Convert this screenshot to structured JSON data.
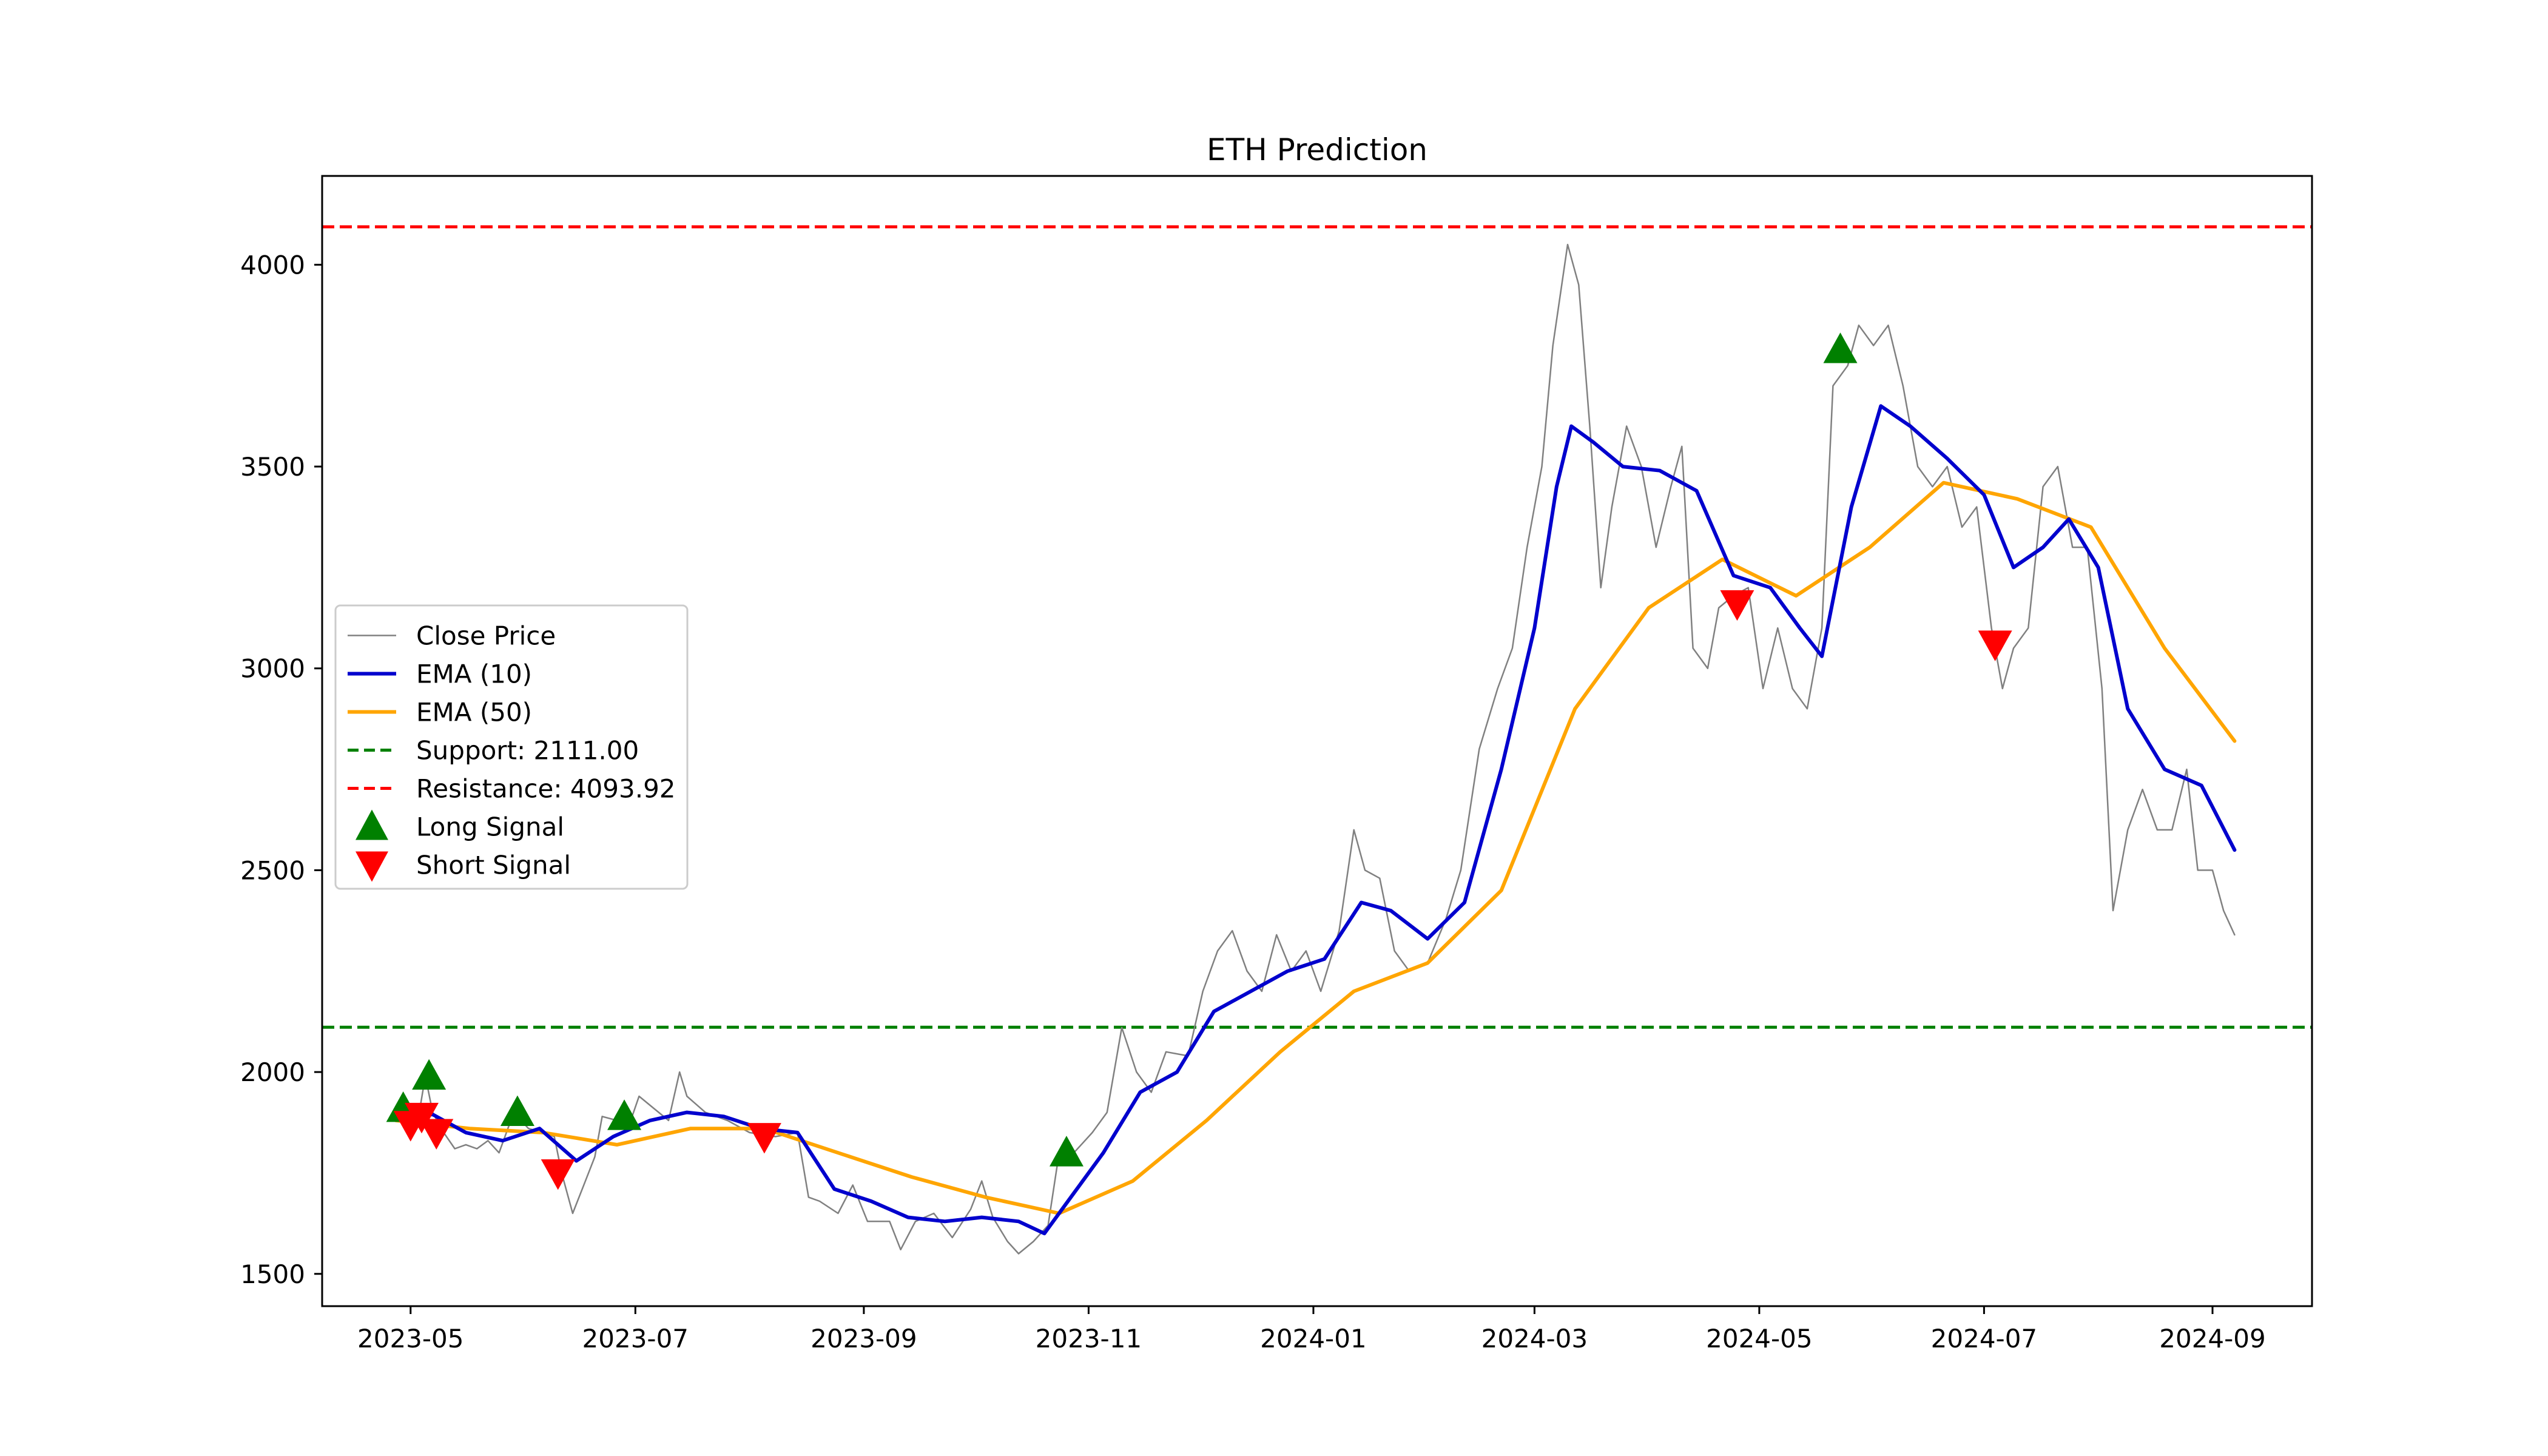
{
  "chart_data": {
    "type": "line",
    "title": "ETH Prediction",
    "xlabel": "",
    "ylabel": "",
    "xlim": [
      "2023-04-07",
      "2024-09-28"
    ],
    "ylim": [
      1420,
      4220
    ],
    "x_ticks": [
      "2023-05-01",
      "2023-07-01",
      "2023-09-01",
      "2023-11-01",
      "2024-01-01",
      "2024-03-01",
      "2024-05-01",
      "2024-07-01",
      "2024-09-01"
    ],
    "x_tick_labels": [
      "2023-05",
      "2023-07",
      "2023-09",
      "2023-11",
      "2024-01",
      "2024-03",
      "2024-05",
      "2024-07",
      "2024-09"
    ],
    "y_ticks": [
      1500,
      2000,
      2500,
      3000,
      3500,
      4000
    ],
    "y_tick_labels": [
      "1500",
      "2000",
      "2500",
      "3000",
      "3500",
      "4000"
    ],
    "grid": false,
    "legend_position": "center-left",
    "legend": [
      {
        "label": "Close Price",
        "style": "thin-line",
        "color": "#808080"
      },
      {
        "label": "EMA (10)",
        "style": "line",
        "color": "#0000cd"
      },
      {
        "label": "EMA (50)",
        "style": "line",
        "color": "#ffa500"
      },
      {
        "label": "Support: 2111.00",
        "style": "dashed",
        "color": "#008000"
      },
      {
        "label": "Resistance: 4093.92",
        "style": "dashed",
        "color": "#ff0000"
      },
      {
        "label": "Long Signal",
        "style": "triangle-up",
        "color": "#008000"
      },
      {
        "label": "Short Signal",
        "style": "triangle-down",
        "color": "#ff0000"
      }
    ],
    "support": 2111.0,
    "resistance": 4093.92,
    "colors": {
      "close": "#808080",
      "ema10": "#0000cd",
      "ema50": "#ffa500",
      "support": "#008000",
      "resistance": "#ff0000",
      "long": "#008000",
      "short": "#ff0000"
    },
    "series": [
      {
        "key": "close",
        "values": [
          [
            "2023-04-27",
            1890
          ],
          [
            "2023-04-30",
            1870
          ],
          [
            "2023-05-03",
            1880
          ],
          [
            "2023-05-05",
            1990
          ],
          [
            "2023-05-07",
            1900
          ],
          [
            "2023-05-10",
            1850
          ],
          [
            "2023-05-13",
            1810
          ],
          [
            "2023-05-16",
            1820
          ],
          [
            "2023-05-19",
            1810
          ],
          [
            "2023-05-22",
            1830
          ],
          [
            "2023-05-25",
            1800
          ],
          [
            "2023-05-29",
            1900
          ],
          [
            "2023-06-02",
            1860
          ],
          [
            "2023-06-06",
            1850
          ],
          [
            "2023-06-09",
            1840
          ],
          [
            "2023-06-11",
            1750
          ],
          [
            "2023-06-14",
            1650
          ],
          [
            "2023-06-17",
            1720
          ],
          [
            "2023-06-20",
            1790
          ],
          [
            "2023-06-22",
            1890
          ],
          [
            "2023-06-26",
            1880
          ],
          [
            "2023-06-29",
            1860
          ],
          [
            "2023-07-02",
            1940
          ],
          [
            "2023-07-06",
            1910
          ],
          [
            "2023-07-10",
            1880
          ],
          [
            "2023-07-13",
            2000
          ],
          [
            "2023-07-15",
            1940
          ],
          [
            "2023-07-20",
            1900
          ],
          [
            "2023-07-26",
            1880
          ],
          [
            "2023-08-01",
            1850
          ],
          [
            "2023-08-08",
            1840
          ],
          [
            "2023-08-14",
            1850
          ],
          [
            "2023-08-17",
            1690
          ],
          [
            "2023-08-20",
            1680
          ],
          [
            "2023-08-25",
            1650
          ],
          [
            "2023-08-29",
            1720
          ],
          [
            "2023-09-02",
            1630
          ],
          [
            "2023-09-08",
            1630
          ],
          [
            "2023-09-11",
            1560
          ],
          [
            "2023-09-15",
            1630
          ],
          [
            "2023-09-20",
            1650
          ],
          [
            "2023-09-25",
            1590
          ],
          [
            "2023-09-30",
            1660
          ],
          [
            "2023-10-03",
            1730
          ],
          [
            "2023-10-06",
            1640
          ],
          [
            "2023-10-10",
            1580
          ],
          [
            "2023-10-13",
            1550
          ],
          [
            "2023-10-17",
            1580
          ],
          [
            "2023-10-21",
            1620
          ],
          [
            "2023-10-24",
            1800
          ],
          [
            "2023-10-28",
            1800
          ],
          [
            "2023-11-02",
            1850
          ],
          [
            "2023-11-06",
            1900
          ],
          [
            "2023-11-10",
            2110
          ],
          [
            "2023-11-14",
            2000
          ],
          [
            "2023-11-18",
            1950
          ],
          [
            "2023-11-22",
            2050
          ],
          [
            "2023-11-28",
            2040
          ],
          [
            "2023-12-02",
            2200
          ],
          [
            "2023-12-06",
            2300
          ],
          [
            "2023-12-10",
            2350
          ],
          [
            "2023-12-14",
            2250
          ],
          [
            "2023-12-18",
            2200
          ],
          [
            "2023-12-22",
            2340
          ],
          [
            "2023-12-26",
            2250
          ],
          [
            "2023-12-30",
            2300
          ],
          [
            "2024-01-03",
            2200
          ],
          [
            "2024-01-08",
            2350
          ],
          [
            "2024-01-12",
            2600
          ],
          [
            "2024-01-15",
            2500
          ],
          [
            "2024-01-19",
            2480
          ],
          [
            "2024-01-23",
            2300
          ],
          [
            "2024-01-27",
            2250
          ],
          [
            "2024-02-01",
            2270
          ],
          [
            "2024-02-06",
            2380
          ],
          [
            "2024-02-10",
            2500
          ],
          [
            "2024-02-15",
            2800
          ],
          [
            "2024-02-20",
            2950
          ],
          [
            "2024-02-24",
            3050
          ],
          [
            "2024-02-28",
            3300
          ],
          [
            "2024-03-03",
            3500
          ],
          [
            "2024-03-06",
            3800
          ],
          [
            "2024-03-10",
            4050
          ],
          [
            "2024-03-13",
            3950
          ],
          [
            "2024-03-16",
            3600
          ],
          [
            "2024-03-19",
            3200
          ],
          [
            "2024-03-22",
            3400
          ],
          [
            "2024-03-26",
            3600
          ],
          [
            "2024-03-30",
            3500
          ],
          [
            "2024-04-03",
            3300
          ],
          [
            "2024-04-07",
            3450
          ],
          [
            "2024-04-10",
            3550
          ],
          [
            "2024-04-13",
            3050
          ],
          [
            "2024-04-17",
            3000
          ],
          [
            "2024-04-20",
            3150
          ],
          [
            "2024-04-24",
            3180
          ],
          [
            "2024-04-28",
            3200
          ],
          [
            "2024-05-02",
            2950
          ],
          [
            "2024-05-06",
            3100
          ],
          [
            "2024-05-10",
            2950
          ],
          [
            "2024-05-14",
            2900
          ],
          [
            "2024-05-18",
            3100
          ],
          [
            "2024-05-21",
            3700
          ],
          [
            "2024-05-25",
            3750
          ],
          [
            "2024-05-28",
            3850
          ],
          [
            "2024-06-01",
            3800
          ],
          [
            "2024-06-05",
            3850
          ],
          [
            "2024-06-09",
            3700
          ],
          [
            "2024-06-13",
            3500
          ],
          [
            "2024-06-17",
            3450
          ],
          [
            "2024-06-21",
            3500
          ],
          [
            "2024-06-25",
            3350
          ],
          [
            "2024-06-29",
            3400
          ],
          [
            "2024-07-03",
            3100
          ],
          [
            "2024-07-06",
            2950
          ],
          [
            "2024-07-09",
            3050
          ],
          [
            "2024-07-13",
            3100
          ],
          [
            "2024-07-17",
            3450
          ],
          [
            "2024-07-21",
            3500
          ],
          [
            "2024-07-25",
            3300
          ],
          [
            "2024-07-29",
            3300
          ],
          [
            "2024-08-02",
            2950
          ],
          [
            "2024-08-05",
            2400
          ],
          [
            "2024-08-09",
            2600
          ],
          [
            "2024-08-13",
            2700
          ],
          [
            "2024-08-17",
            2600
          ],
          [
            "2024-08-21",
            2600
          ],
          [
            "2024-08-25",
            2750
          ],
          [
            "2024-08-28",
            2500
          ],
          [
            "2024-09-01",
            2500
          ],
          [
            "2024-09-04",
            2400
          ],
          [
            "2024-09-07",
            2340
          ]
        ]
      },
      {
        "key": "ema10",
        "values": [
          [
            "2023-04-27",
            1890
          ],
          [
            "2023-05-07",
            1895
          ],
          [
            "2023-05-16",
            1850
          ],
          [
            "2023-05-26",
            1830
          ],
          [
            "2023-06-05",
            1860
          ],
          [
            "2023-06-15",
            1780
          ],
          [
            "2023-06-25",
            1840
          ],
          [
            "2023-07-05",
            1880
          ],
          [
            "2023-07-15",
            1900
          ],
          [
            "2023-07-25",
            1890
          ],
          [
            "2023-08-04",
            1860
          ],
          [
            "2023-08-14",
            1850
          ],
          [
            "2023-08-24",
            1710
          ],
          [
            "2023-09-03",
            1680
          ],
          [
            "2023-09-13",
            1640
          ],
          [
            "2023-09-23",
            1630
          ],
          [
            "2023-10-03",
            1640
          ],
          [
            "2023-10-13",
            1630
          ],
          [
            "2023-10-20",
            1600
          ],
          [
            "2023-10-28",
            1700
          ],
          [
            "2023-11-05",
            1800
          ],
          [
            "2023-11-15",
            1950
          ],
          [
            "2023-11-25",
            2000
          ],
          [
            "2023-12-05",
            2150
          ],
          [
            "2023-12-15",
            2200
          ],
          [
            "2023-12-25",
            2250
          ],
          [
            "2024-01-04",
            2280
          ],
          [
            "2024-01-14",
            2420
          ],
          [
            "2024-01-22",
            2400
          ],
          [
            "2024-02-01",
            2330
          ],
          [
            "2024-02-11",
            2420
          ],
          [
            "2024-02-21",
            2750
          ],
          [
            "2024-03-01",
            3100
          ],
          [
            "2024-03-07",
            3450
          ],
          [
            "2024-03-11",
            3600
          ],
          [
            "2024-03-17",
            3560
          ],
          [
            "2024-03-25",
            3500
          ],
          [
            "2024-04-04",
            3490
          ],
          [
            "2024-04-14",
            3440
          ],
          [
            "2024-04-24",
            3230
          ],
          [
            "2024-05-04",
            3200
          ],
          [
            "2024-05-12",
            3100
          ],
          [
            "2024-05-18",
            3030
          ],
          [
            "2024-05-26",
            3400
          ],
          [
            "2024-06-03",
            3650
          ],
          [
            "2024-06-11",
            3600
          ],
          [
            "2024-06-21",
            3520
          ],
          [
            "2024-07-01",
            3430
          ],
          [
            "2024-07-09",
            3250
          ],
          [
            "2024-07-17",
            3300
          ],
          [
            "2024-07-24",
            3370
          ],
          [
            "2024-08-01",
            3250
          ],
          [
            "2024-08-09",
            2900
          ],
          [
            "2024-08-19",
            2750
          ],
          [
            "2024-08-29",
            2710
          ],
          [
            "2024-09-07",
            2550
          ]
        ]
      },
      {
        "key": "ema50",
        "values": [
          [
            "2023-04-27",
            1880
          ],
          [
            "2023-05-17",
            1860
          ],
          [
            "2023-06-06",
            1850
          ],
          [
            "2023-06-26",
            1820
          ],
          [
            "2023-07-16",
            1860
          ],
          [
            "2023-08-05",
            1860
          ],
          [
            "2023-08-25",
            1800
          ],
          [
            "2023-09-14",
            1740
          ],
          [
            "2023-10-04",
            1690
          ],
          [
            "2023-10-24",
            1650
          ],
          [
            "2023-11-13",
            1730
          ],
          [
            "2023-12-03",
            1880
          ],
          [
            "2023-12-23",
            2050
          ],
          [
            "2024-01-12",
            2200
          ],
          [
            "2024-02-01",
            2270
          ],
          [
            "2024-02-21",
            2450
          ],
          [
            "2024-03-12",
            2900
          ],
          [
            "2024-04-01",
            3150
          ],
          [
            "2024-04-21",
            3270
          ],
          [
            "2024-05-11",
            3180
          ],
          [
            "2024-05-31",
            3300
          ],
          [
            "2024-06-20",
            3460
          ],
          [
            "2024-07-10",
            3420
          ],
          [
            "2024-07-30",
            3350
          ],
          [
            "2024-08-19",
            3050
          ],
          [
            "2024-09-07",
            2820
          ]
        ]
      }
    ],
    "long_signals": [
      [
        "2023-04-29",
        1910
      ],
      [
        "2023-05-06",
        1990
      ],
      [
        "2023-05-30",
        1900
      ],
      [
        "2023-06-28",
        1890
      ],
      [
        "2023-10-26",
        1800
      ],
      [
        "2024-05-23",
        3790
      ]
    ],
    "short_signals": [
      [
        "2023-05-01",
        1870
      ],
      [
        "2023-05-04",
        1890
      ],
      [
        "2023-05-08",
        1850
      ],
      [
        "2023-06-10",
        1750
      ],
      [
        "2023-08-05",
        1840
      ],
      [
        "2024-04-25",
        3160
      ],
      [
        "2024-07-04",
        3060
      ]
    ]
  }
}
